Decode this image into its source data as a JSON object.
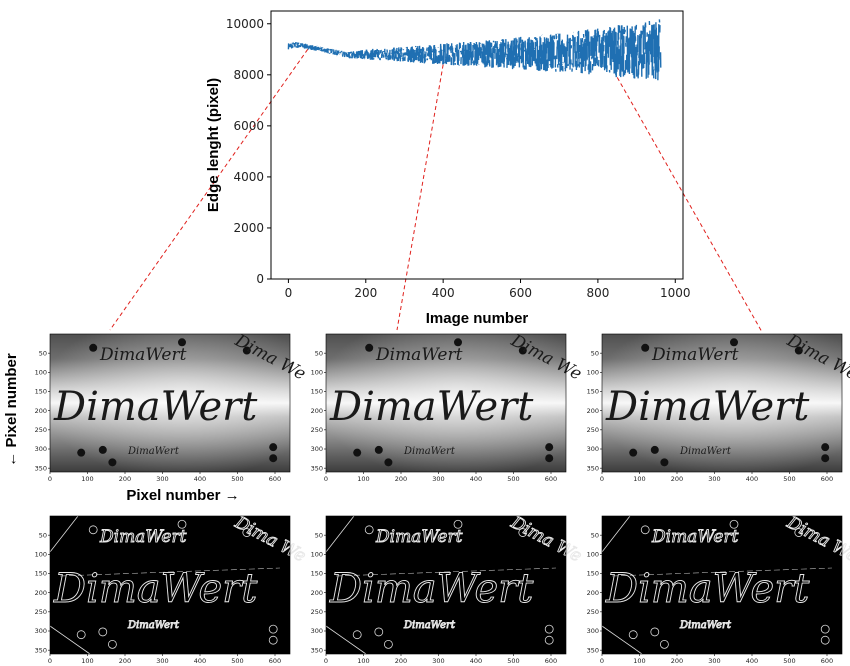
{
  "chart_data": [
    {
      "type": "line",
      "title": "",
      "xlabel": "Image number",
      "ylabel": "Edge lenght (pixel)",
      "xlim": [
        -45,
        1020
      ],
      "ylim": [
        0,
        10500
      ],
      "xticks": [
        0,
        200,
        400,
        600,
        800,
        1000
      ],
      "yticks": [
        0,
        2000,
        4000,
        6000,
        8000,
        10000
      ],
      "grid": false,
      "legend": "none",
      "series": [
        {
          "color": "#1f6fb2",
          "x": [
            0,
            20,
            50,
            100,
            150,
            200,
            250,
            300,
            350,
            400,
            450,
            500,
            550,
            600,
            650,
            700,
            750,
            800,
            850,
            900,
            940,
            962
          ],
          "y_upper": [
            9250,
            9300,
            9200,
            9050,
            8900,
            9000,
            9050,
            9100,
            9150,
            9250,
            9300,
            9350,
            9400,
            9500,
            9550,
            9650,
            9750,
            9850,
            9950,
            10050,
            10150,
            10350
          ],
          "y_lower": [
            9000,
            9050,
            9000,
            8850,
            8650,
            8600,
            8550,
            8500,
            8450,
            8400,
            8350,
            8300,
            8250,
            8200,
            8150,
            8100,
            8050,
            8000,
            7900,
            7850,
            7800,
            7750
          ]
        }
      ]
    },
    {
      "type": "image",
      "panel": "grayscale",
      "count": 3,
      "xticks": [
        0,
        100,
        200,
        300,
        400,
        500,
        600
      ],
      "yticks": [
        50,
        100,
        150,
        200,
        250,
        300,
        350
      ],
      "xlabel": "Pixel number →",
      "ylabel": "← Pixel number",
      "text_in_image": [
        "DimaWert",
        "DimaWert",
        "DimaWert",
        "Dima We"
      ]
    },
    {
      "type": "image",
      "panel": "edges",
      "count": 3,
      "xticks": [
        0,
        100,
        200,
        300,
        400,
        500,
        600
      ],
      "yticks": [
        50,
        100,
        150,
        200,
        250,
        300,
        350
      ]
    }
  ],
  "connectors": {
    "color": "#e0201c",
    "style": "dashed",
    "samples": [
      50,
      400,
      850
    ]
  },
  "image_text": {
    "large": "DimaWert",
    "top": "DimaWert",
    "bottom": "DimaWert",
    "diagonal": "Dima We"
  }
}
